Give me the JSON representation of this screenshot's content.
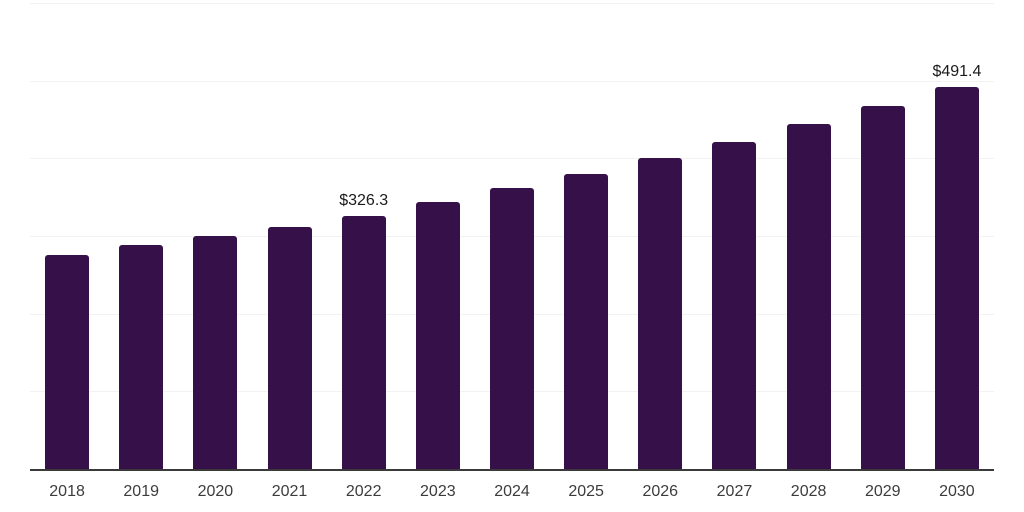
{
  "chart_data": {
    "type": "bar",
    "title": "",
    "xlabel": "",
    "ylabel": "",
    "categories": [
      "2018",
      "2019",
      "2020",
      "2021",
      "2022",
      "2023",
      "2024",
      "2025",
      "2026",
      "2027",
      "2028",
      "2029",
      "2030"
    ],
    "values": [
      276.0,
      287.9,
      299.4,
      312.2,
      326.3,
      343.4,
      361.5,
      380.4,
      400.4,
      421.4,
      443.6,
      466.9,
      491.4
    ],
    "point_labels": [
      null,
      null,
      null,
      null,
      "$326.3",
      null,
      null,
      null,
      null,
      null,
      null,
      null,
      "$491.4"
    ],
    "ylim": [
      0,
      600
    ],
    "ytick_step": 100,
    "y_tick_labels_shown": false,
    "grid": "horizontal",
    "legend_position": "none",
    "colors": {
      "bar": "#351049",
      "gridline": "#f2f2f2",
      "axis_line": "#3a3a3a",
      "tick_label": "#3c3c3c",
      "value_label": "#1a1a1a",
      "background": "#ffffff"
    }
  }
}
